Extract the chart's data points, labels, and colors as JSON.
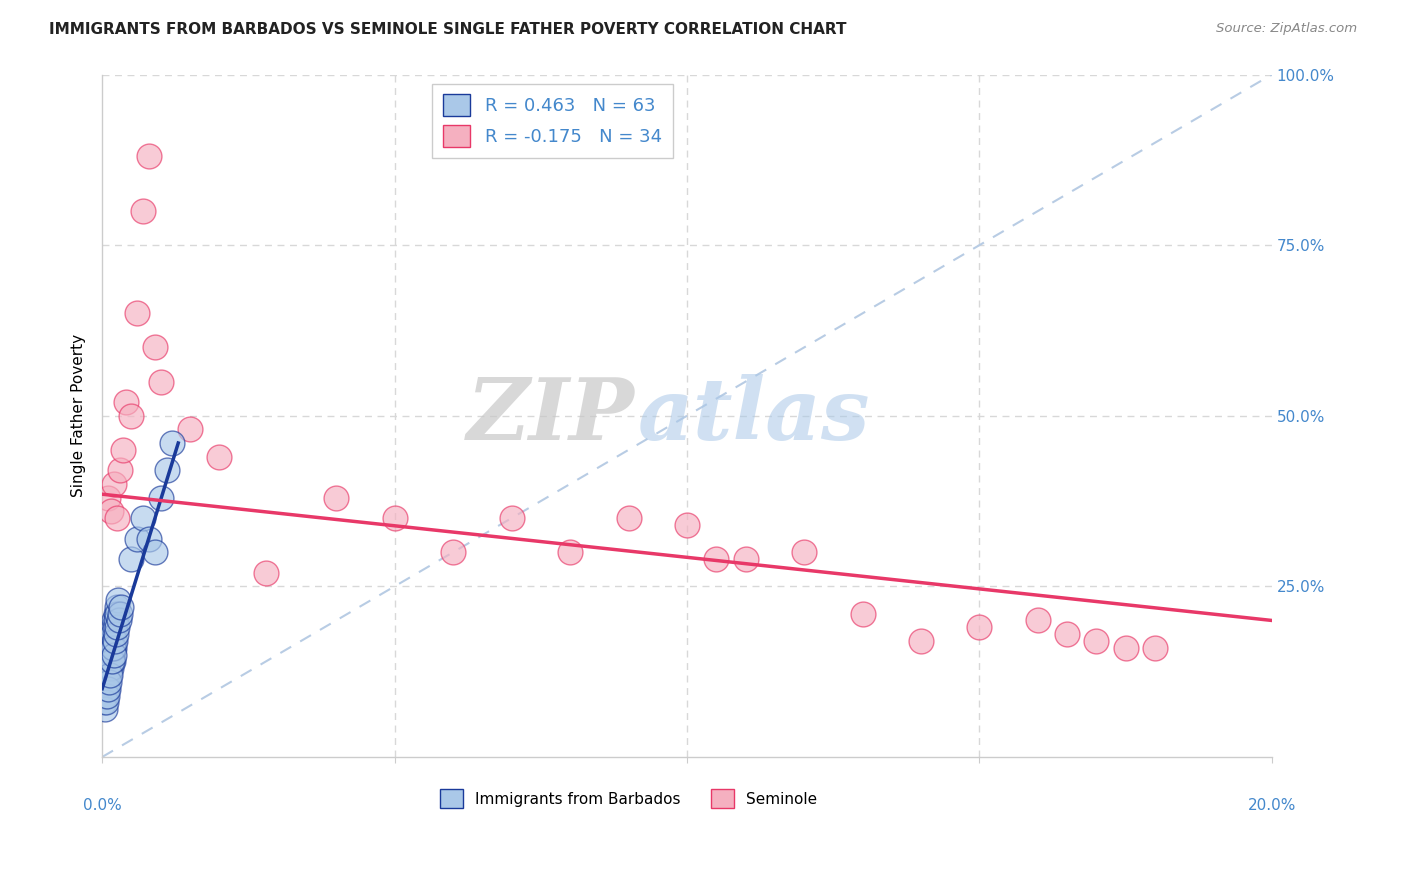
{
  "title": "IMMIGRANTS FROM BARBADOS VS SEMINOLE SINGLE FATHER POVERTY CORRELATION CHART",
  "source": "Source: ZipAtlas.com",
  "ylabel": "Single Father Poverty",
  "watermark_zip": "ZIP",
  "watermark_atlas": "atlas",
  "legend_label_1": "Immigrants from Barbados",
  "legend_label_2": "Seminole",
  "R1": 0.463,
  "N1": 63,
  "R2": -0.175,
  "N2": 34,
  "color_blue": "#aac8e8",
  "color_pink": "#f5b0c0",
  "trendline_blue": "#1a3a9a",
  "trendline_pink": "#e83868",
  "ref_line_color": "#b8cce4",
  "xlim": [
    0.0,
    0.2
  ],
  "ylim": [
    0.0,
    1.0
  ],
  "xticks": [
    0.0,
    0.05,
    0.1,
    0.15,
    0.2
  ],
  "yticks": [
    0.0,
    0.25,
    0.5,
    0.75,
    1.0
  ],
  "xtick_labels_left": "0.0%",
  "xtick_labels_right": "20.0%",
  "ytick_labels_right": [
    "",
    "25.0%",
    "50.0%",
    "75.0%",
    "100.0%"
  ],
  "background_color": "#ffffff",
  "grid_color": "#d8d8d8",
  "label_color": "#4488cc",
  "blue_x": [
    0.0002,
    0.0003,
    0.0004,
    0.0005,
    0.0005,
    0.0006,
    0.0007,
    0.0008,
    0.0009,
    0.001,
    0.001,
    0.0011,
    0.0012,
    0.0012,
    0.0013,
    0.0014,
    0.0015,
    0.0015,
    0.0016,
    0.0017,
    0.0018,
    0.0019,
    0.002,
    0.0021,
    0.0022,
    0.0023,
    0.0024,
    0.0025,
    0.0026,
    0.0027,
    0.0003,
    0.0005,
    0.0007,
    0.0009,
    0.0011,
    0.0013,
    0.0015,
    0.0017,
    0.0019,
    0.0021,
    0.0004,
    0.0006,
    0.0008,
    0.001,
    0.0012,
    0.0014,
    0.0016,
    0.0018,
    0.002,
    0.0022,
    0.0024,
    0.0026,
    0.0028,
    0.003,
    0.0032,
    0.005,
    0.006,
    0.007,
    0.008,
    0.009,
    0.01,
    0.011,
    0.012
  ],
  "blue_y": [
    0.1,
    0.12,
    0.1,
    0.11,
    0.09,
    0.13,
    0.1,
    0.12,
    0.11,
    0.13,
    0.15,
    0.14,
    0.16,
    0.13,
    0.15,
    0.17,
    0.16,
    0.14,
    0.18,
    0.17,
    0.19,
    0.18,
    0.17,
    0.2,
    0.19,
    0.21,
    0.2,
    0.22,
    0.21,
    0.23,
    0.08,
    0.09,
    0.11,
    0.1,
    0.12,
    0.14,
    0.13,
    0.15,
    0.14,
    0.16,
    0.07,
    0.08,
    0.09,
    0.1,
    0.11,
    0.12,
    0.14,
    0.16,
    0.15,
    0.17,
    0.18,
    0.19,
    0.2,
    0.21,
    0.22,
    0.29,
    0.32,
    0.35,
    0.32,
    0.3,
    0.38,
    0.42,
    0.46
  ],
  "pink_x": [
    0.001,
    0.0015,
    0.002,
    0.0025,
    0.003,
    0.0035,
    0.004,
    0.005,
    0.006,
    0.007,
    0.008,
    0.009,
    0.01,
    0.015,
    0.02,
    0.028,
    0.04,
    0.05,
    0.06,
    0.07,
    0.08,
    0.09,
    0.1,
    0.105,
    0.11,
    0.12,
    0.13,
    0.14,
    0.15,
    0.16,
    0.165,
    0.17,
    0.175,
    0.18
  ],
  "pink_y": [
    0.38,
    0.36,
    0.4,
    0.35,
    0.42,
    0.45,
    0.52,
    0.5,
    0.65,
    0.8,
    0.88,
    0.6,
    0.55,
    0.48,
    0.44,
    0.27,
    0.38,
    0.35,
    0.3,
    0.35,
    0.3,
    0.35,
    0.34,
    0.29,
    0.29,
    0.3,
    0.21,
    0.17,
    0.19,
    0.2,
    0.18,
    0.17,
    0.16,
    0.16
  ],
  "blue_trend_x0": 0.0,
  "blue_trend_y0": 0.1,
  "blue_trend_x1": 0.013,
  "blue_trend_y1": 0.46,
  "pink_trend_x0": 0.0,
  "pink_trend_y0": 0.385,
  "pink_trend_x1": 0.2,
  "pink_trend_y1": 0.2
}
